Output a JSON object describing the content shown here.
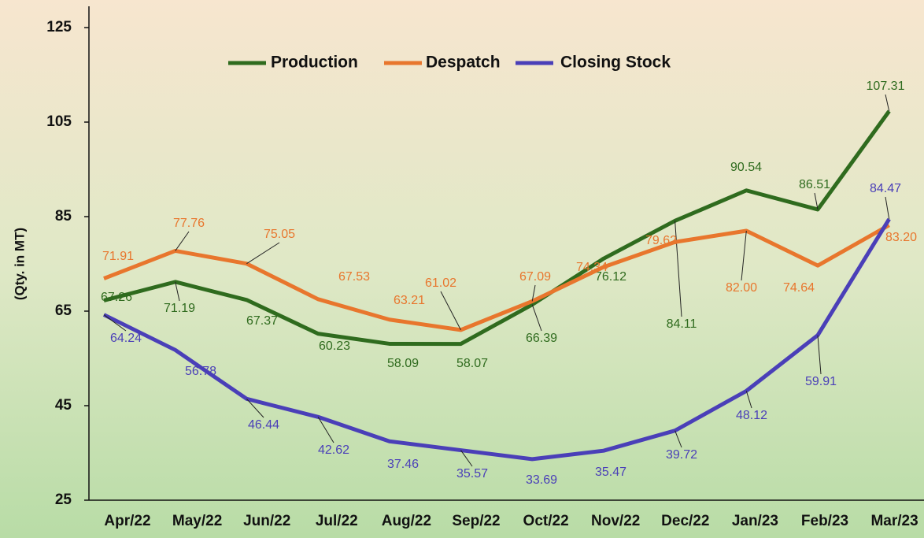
{
  "chart_data": {
    "type": "line",
    "y_label": "(Qty. in MT)",
    "categories": [
      "Apr/22",
      "May/22",
      "Jun/22",
      "Jul/22",
      "Aug/22",
      "Sep/22",
      "Oct/22",
      "Nov/22",
      "Dec/22",
      "Jan/23",
      "Feb/23",
      "Mar/23"
    ],
    "series": [
      {
        "name": "Production",
        "color": "#2f6b1e",
        "values": [
          67.26,
          71.19,
          67.37,
          60.23,
          58.09,
          58.07,
          66.39,
          76.12,
          84.11,
          90.54,
          86.51,
          107.31
        ],
        "value_labels": [
          "67.26",
          "71.19",
          "67.37",
          "60.23",
          "58.09",
          "58.07",
          "66.39",
          "76.12",
          "84.11",
          "90.54",
          "86.51",
          "107.31"
        ]
      },
      {
        "name": "Despatch",
        "color": "#e8762d",
        "values": [
          71.91,
          77.76,
          75.05,
          67.53,
          63.21,
          61.02,
          67.09,
          74.34,
          79.62,
          82.0,
          74.64,
          83.2
        ],
        "value_labels": [
          "71.91",
          "77.76",
          "75.05",
          "67.53",
          "63.21",
          "61.02",
          "67.09",
          "74.34",
          "79.62",
          "82.00",
          "74.64",
          "83.20"
        ]
      },
      {
        "name": "Closing Stock",
        "color": "#4a3fb8",
        "values": [
          64.24,
          56.78,
          46.44,
          42.62,
          37.46,
          35.57,
          33.69,
          35.47,
          39.72,
          48.12,
          59.91,
          84.47
        ],
        "value_labels": [
          "64.24",
          "56.78",
          "46.44",
          "42.62",
          "37.46",
          "35.57",
          "33.69",
          "35.47",
          "39.72",
          "48.12",
          "59.91",
          "84.47"
        ]
      }
    ],
    "ylim": [
      25,
      125
    ],
    "yticks": [
      25,
      45,
      65,
      85,
      105,
      125
    ],
    "legend": "top"
  }
}
